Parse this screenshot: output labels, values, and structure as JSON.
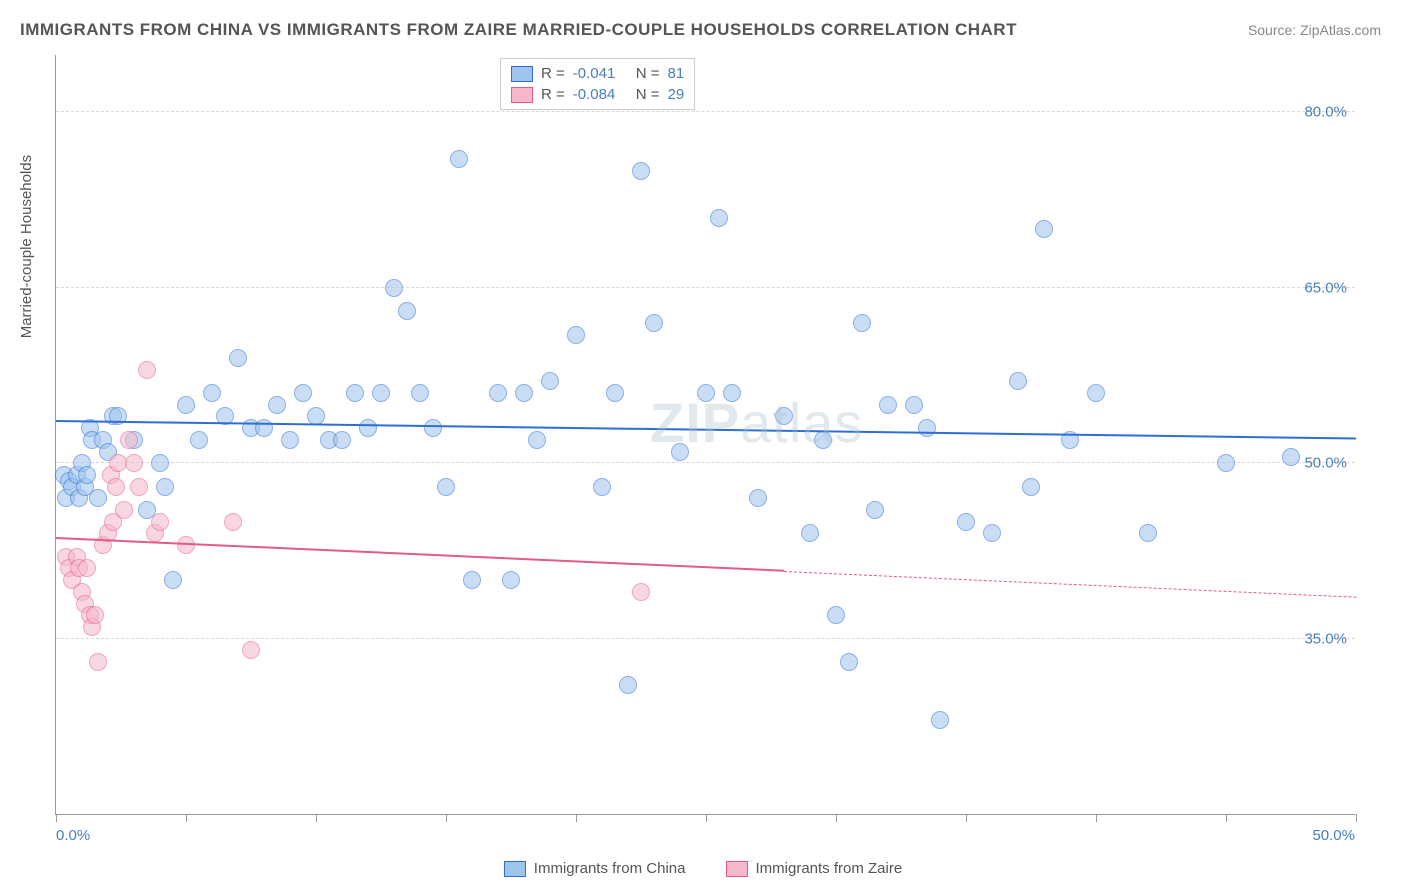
{
  "title": "IMMIGRANTS FROM CHINA VS IMMIGRANTS FROM ZAIRE MARRIED-COUPLE HOUSEHOLDS CORRELATION CHART",
  "source": "Source: ZipAtlas.com",
  "watermark": "ZIPatlas",
  "ylabel": "Married-couple Households",
  "chart": {
    "type": "scatter",
    "xlim": [
      0,
      50
    ],
    "ylim": [
      20,
      85
    ],
    "yticks": [
      35.0,
      50.0,
      65.0,
      80.0
    ],
    "ytick_labels": [
      "35.0%",
      "50.0%",
      "65.0%",
      "80.0%"
    ],
    "xticks": [
      0,
      5,
      10,
      15,
      20,
      25,
      30,
      35,
      40,
      45,
      50
    ],
    "xtick_labels": {
      "start": "0.0%",
      "end": "50.0%"
    },
    "background_color": "#ffffff",
    "grid_color": "#d8d8d8",
    "axis_color": "#999999",
    "point_radius": 9,
    "point_opacity": 0.55,
    "series": [
      {
        "name": "Immigrants from China",
        "stroke": "#2e6fd6",
        "fill": "#9ec4ec",
        "R": "-0.041",
        "N": "81",
        "trend": {
          "y_start": 53.5,
          "y_end": 52.0,
          "x_start": 0,
          "x_end": 50
        },
        "points": [
          [
            0.3,
            49
          ],
          [
            0.4,
            47
          ],
          [
            0.5,
            48.5
          ],
          [
            0.6,
            48
          ],
          [
            0.8,
            49
          ],
          [
            0.9,
            47
          ],
          [
            1.0,
            50
          ],
          [
            1.1,
            48
          ],
          [
            1.2,
            49
          ],
          [
            1.3,
            53
          ],
          [
            1.4,
            52
          ],
          [
            1.6,
            47
          ],
          [
            1.8,
            52
          ],
          [
            2.0,
            51
          ],
          [
            2.2,
            54
          ],
          [
            2.4,
            54
          ],
          [
            3.0,
            52
          ],
          [
            3.5,
            46
          ],
          [
            4.0,
            50
          ],
          [
            4.2,
            48
          ],
          [
            4.5,
            40
          ],
          [
            5.0,
            55
          ],
          [
            5.5,
            52
          ],
          [
            6.0,
            56
          ],
          [
            6.5,
            54
          ],
          [
            7.0,
            59
          ],
          [
            7.5,
            53
          ],
          [
            8.0,
            53
          ],
          [
            8.5,
            55
          ],
          [
            9.0,
            52
          ],
          [
            9.5,
            56
          ],
          [
            10,
            54
          ],
          [
            10.5,
            52
          ],
          [
            11,
            52
          ],
          [
            11.5,
            56
          ],
          [
            12,
            53
          ],
          [
            12.5,
            56
          ],
          [
            13,
            65
          ],
          [
            13.5,
            63
          ],
          [
            14,
            56
          ],
          [
            14.5,
            53
          ],
          [
            15,
            48
          ],
          [
            15.5,
            76
          ],
          [
            16,
            40
          ],
          [
            17,
            56
          ],
          [
            17.5,
            40
          ],
          [
            18,
            56
          ],
          [
            18.5,
            52
          ],
          [
            19,
            57
          ],
          [
            20,
            61
          ],
          [
            21,
            48
          ],
          [
            21.5,
            56
          ],
          [
            22,
            31
          ],
          [
            22.5,
            75
          ],
          [
            23,
            62
          ],
          [
            24,
            51
          ],
          [
            25,
            56
          ],
          [
            25.5,
            71
          ],
          [
            26,
            56
          ],
          [
            27,
            47
          ],
          [
            28,
            54
          ],
          [
            29,
            44
          ],
          [
            29.5,
            52
          ],
          [
            30,
            37
          ],
          [
            30.5,
            33
          ],
          [
            31,
            62
          ],
          [
            31.5,
            46
          ],
          [
            32,
            55
          ],
          [
            33,
            55
          ],
          [
            33.5,
            53
          ],
          [
            34,
            28
          ],
          [
            35,
            45
          ],
          [
            36,
            44
          ],
          [
            37,
            57
          ],
          [
            37.5,
            48
          ],
          [
            38,
            70
          ],
          [
            39,
            52
          ],
          [
            40,
            56
          ],
          [
            42,
            44
          ],
          [
            45,
            50
          ],
          [
            47.5,
            50.5
          ]
        ]
      },
      {
        "name": "Immigrants from Zaire",
        "stroke": "#e55a8a",
        "fill": "#f5b8cb",
        "R": "-0.084",
        "N": "29",
        "trend": {
          "y_start": 43.5,
          "y_end": 38.5,
          "x_start": 0,
          "x_end": 50,
          "solid_until": 28
        },
        "points": [
          [
            0.4,
            42
          ],
          [
            0.5,
            41
          ],
          [
            0.6,
            40
          ],
          [
            0.8,
            42
          ],
          [
            0.9,
            41
          ],
          [
            1.0,
            39
          ],
          [
            1.1,
            38
          ],
          [
            1.2,
            41
          ],
          [
            1.3,
            37
          ],
          [
            1.4,
            36
          ],
          [
            1.5,
            37
          ],
          [
            1.6,
            33
          ],
          [
            1.8,
            43
          ],
          [
            2.0,
            44
          ],
          [
            2.1,
            49
          ],
          [
            2.2,
            45
          ],
          [
            2.3,
            48
          ],
          [
            2.4,
            50
          ],
          [
            2.6,
            46
          ],
          [
            2.8,
            52
          ],
          [
            3.0,
            50
          ],
          [
            3.2,
            48
          ],
          [
            3.5,
            58
          ],
          [
            3.8,
            44
          ],
          [
            4.0,
            45
          ],
          [
            5.0,
            43
          ],
          [
            6.8,
            45
          ],
          [
            7.5,
            34
          ],
          [
            22.5,
            39
          ]
        ]
      }
    ]
  },
  "legend_top": {
    "R_label": "R =",
    "N_label": "N ="
  },
  "legend_bottom": [
    {
      "label": "Immigrants from China",
      "stroke": "#2e6fd6",
      "fill": "#9ec4ec"
    },
    {
      "label": "Immigrants from Zaire",
      "stroke": "#e55a8a",
      "fill": "#f5b8cb"
    }
  ]
}
